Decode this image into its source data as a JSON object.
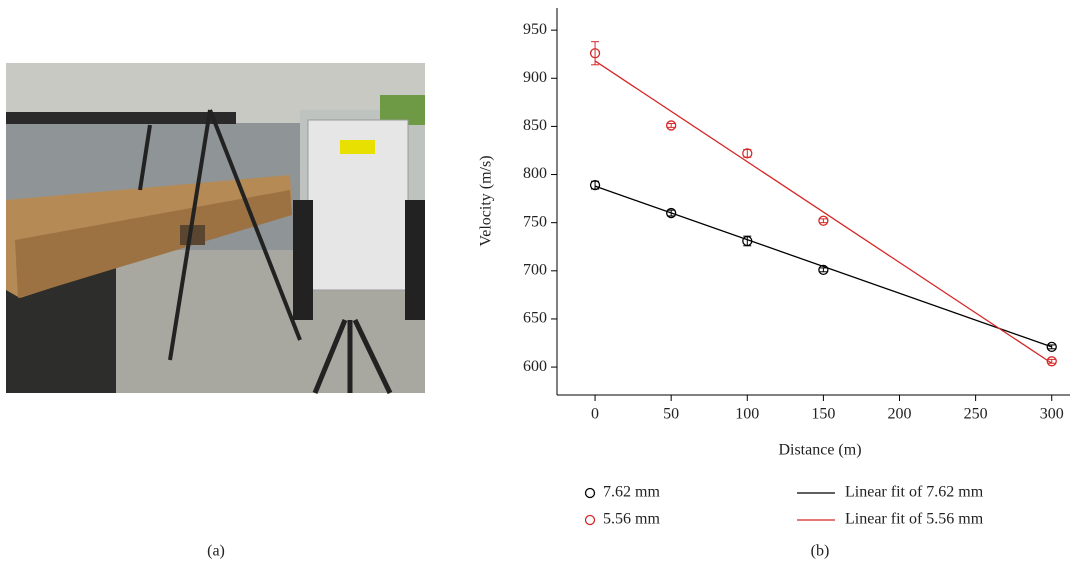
{
  "panel_labels": [
    "(a)",
    "(b)"
  ],
  "chart_data": {
    "type": "scatter",
    "xlabel": "Distance (m)",
    "ylabel": "Velocity (m/s)",
    "xlim": [
      -25,
      312
    ],
    "xticks": [
      0,
      50,
      100,
      150,
      200,
      250,
      300
    ],
    "ylim": [
      571,
      973
    ],
    "yticks": [
      600,
      650,
      700,
      750,
      800,
      850,
      900,
      950
    ],
    "series": [
      {
        "name": "7.62 mm",
        "color": "#000000",
        "kind": "scatter",
        "x": [
          0,
          50,
          100,
          150,
          300
        ],
        "values": [
          789,
          760,
          731,
          701,
          621
        ],
        "errors": [
          4,
          3,
          5,
          2,
          2
        ]
      },
      {
        "name": "5.56 mm",
        "color": "#d62728",
        "kind": "scatter",
        "x": [
          0,
          50,
          100,
          150,
          300
        ],
        "values": [
          926,
          851,
          822,
          752,
          606
        ],
        "errors": [
          12,
          2,
          4,
          2,
          2
        ]
      },
      {
        "name": "Linear fit of 7.62 mm",
        "color": "#000000",
        "kind": "line",
        "x": [
          0,
          300
        ],
        "values": [
          788,
          621
        ]
      },
      {
        "name": "Linear fit of 5.56 mm",
        "color": "#d62728",
        "kind": "line",
        "x": [
          0,
          300
        ],
        "values": [
          918,
          604
        ]
      }
    ]
  }
}
